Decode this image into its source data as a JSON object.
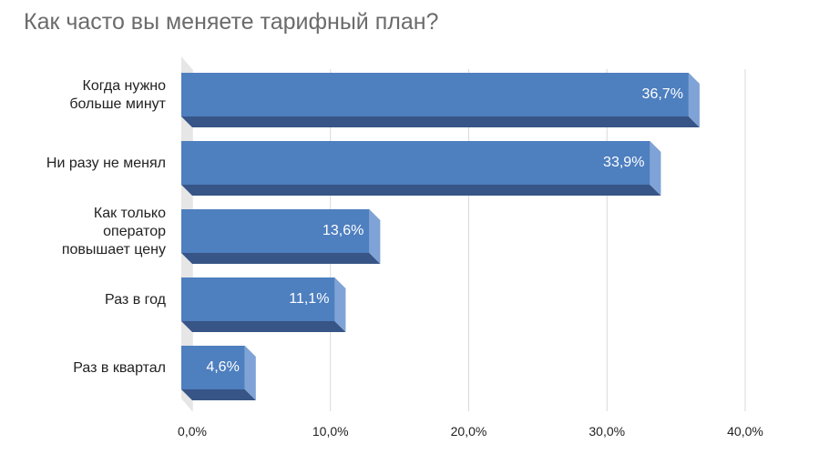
{
  "chart_data": {
    "type": "bar",
    "orientation": "horizontal",
    "title": "Как часто вы меняете тарифный план?",
    "categories": [
      "Когда нужно больше минут",
      "Ни разу не менял",
      "Как только оператор повышает цену",
      "Раз в год",
      "Раз в квартал"
    ],
    "category_lines": [
      [
        "Когда нужно",
        "больше минут"
      ],
      [
        "Ни разу не менял"
      ],
      [
        "Как только",
        "оператор",
        "повышает цену"
      ],
      [
        "Раз в год"
      ],
      [
        "Раз в квартал"
      ]
    ],
    "values": [
      36.7,
      33.9,
      13.6,
      11.1,
      4.6
    ],
    "value_labels": [
      "36,7%",
      "33,9%",
      "13,6%",
      "11,1%",
      "4,6%"
    ],
    "xlim": [
      0,
      40
    ],
    "ticks": [
      0,
      10,
      20,
      30,
      40
    ],
    "tick_labels": [
      "0,0%",
      "10,0%",
      "20,0%",
      "30,0%",
      "40,0%"
    ],
    "grid": true,
    "style": "3d",
    "colors": {
      "front": "#4e7fbf",
      "bottom": "#375586",
      "side": "#7fa3d6",
      "wall": "#e6e6e6",
      "grid": "#d9d9d9"
    }
  }
}
